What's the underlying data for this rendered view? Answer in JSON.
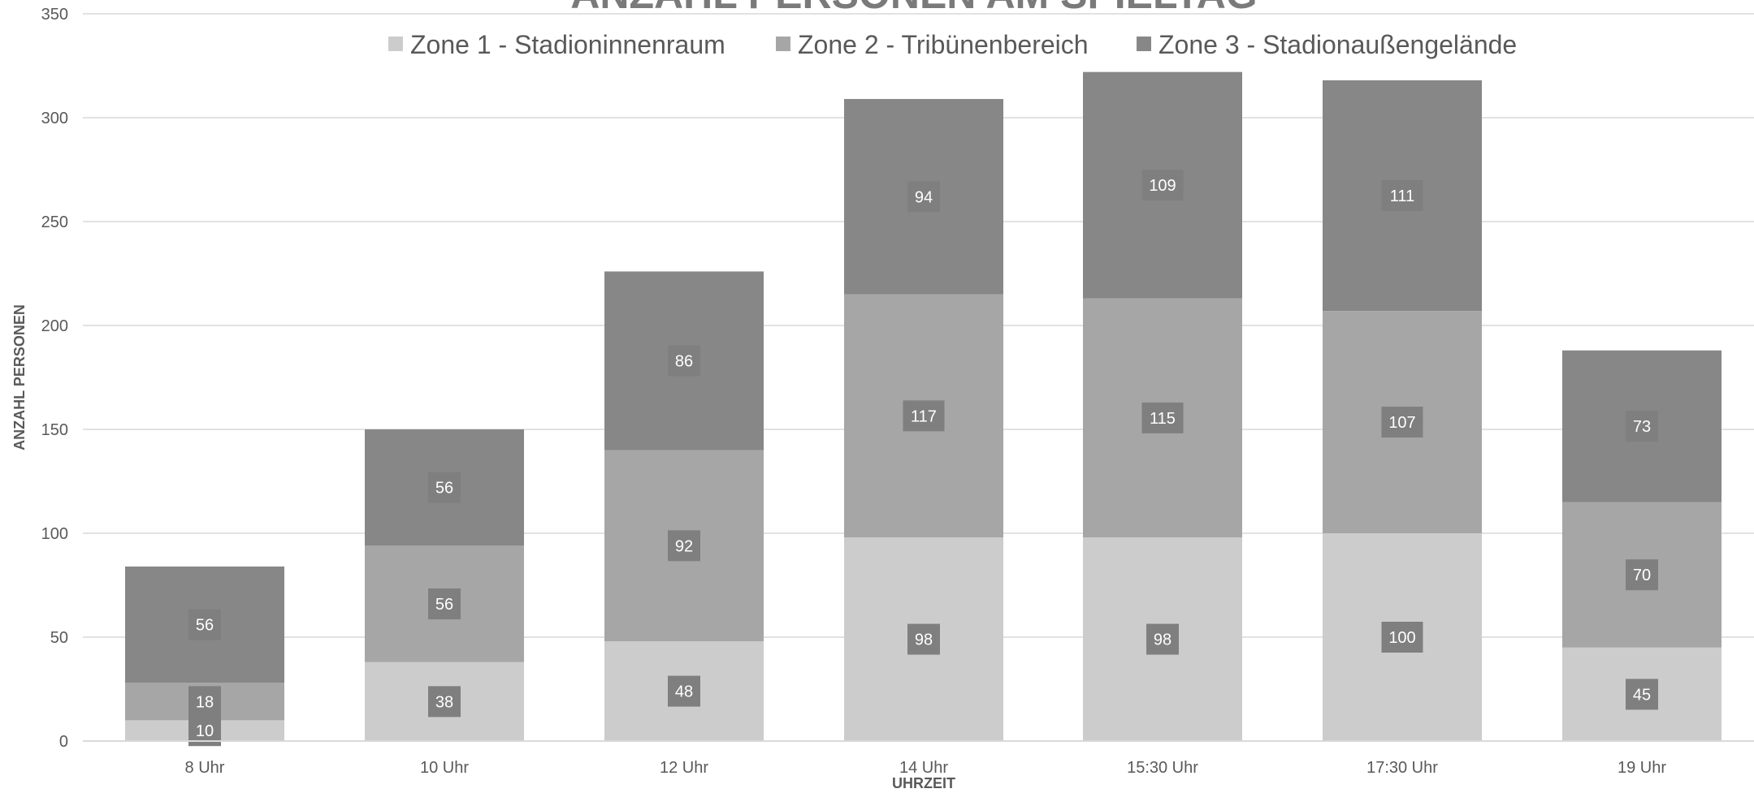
{
  "chart_data": {
    "type": "bar",
    "stacked": true,
    "title": "ANZAHL PERSONEN AM SPIELTAG",
    "xlabel": "UHRZEIT",
    "ylabel": "ANZAHL PERSONEN",
    "ylim": [
      0,
      350
    ],
    "yticks": [
      "0",
      "50",
      "100",
      "150",
      "200",
      "250",
      "300",
      "350"
    ],
    "grid": true,
    "legend_position": "top",
    "categories": [
      "8 Uhr",
      "10 Uhr",
      "12 Uhr",
      "14 Uhr",
      "15:30 Uhr",
      "17:30 Uhr",
      "19 Uhr"
    ],
    "series": [
      {
        "name": "Zone 1 - Stadioninnenraum",
        "color": "#cccccc",
        "values": [
          10,
          38,
          48,
          98,
          98,
          100,
          45
        ]
      },
      {
        "name": "Zone 2 - Tribünenbereich",
        "color": "#a6a6a6",
        "values": [
          18,
          56,
          92,
          117,
          115,
          107,
          70
        ]
      },
      {
        "name": "Zone 3 - Stadionaußengelände",
        "color": "#878787",
        "values": [
          56,
          56,
          86,
          94,
          109,
          111,
          73
        ]
      }
    ],
    "label_box_color": "#7f7f7f",
    "grid_color": "#d9d9d9"
  }
}
